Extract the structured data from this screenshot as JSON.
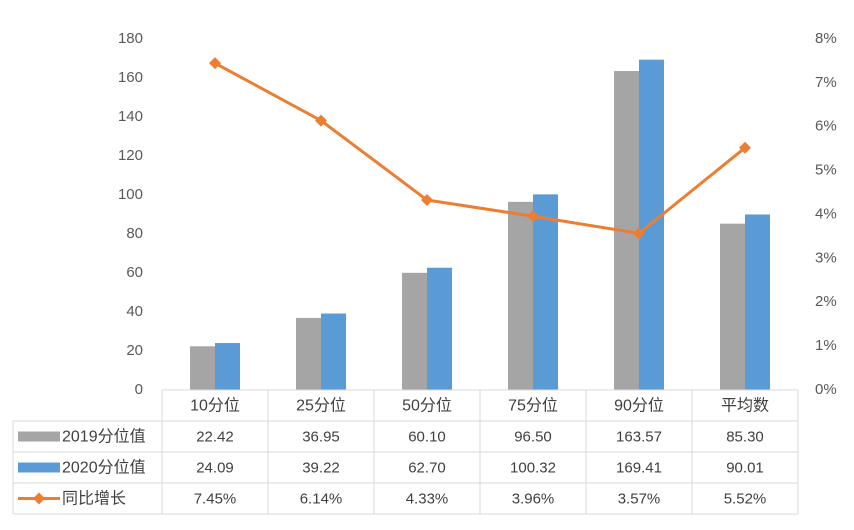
{
  "chart_data": {
    "type": "bar",
    "categories": [
      "10分位",
      "25分位",
      "50分位",
      "75分位",
      "90分位",
      "平均数"
    ],
    "series": [
      {
        "name": "2019分位值",
        "type": "bar",
        "axis": "left",
        "color": "#a5a5a5",
        "values": [
          22.42,
          36.95,
          60.1,
          96.5,
          163.57,
          85.3
        ],
        "labels": [
          "22.42",
          "36.95",
          "60.10",
          "96.50",
          "163.57",
          "85.30"
        ]
      },
      {
        "name": "2020分位值",
        "type": "bar",
        "axis": "left",
        "color": "#5b9bd5",
        "values": [
          24.09,
          39.22,
          62.7,
          100.32,
          169.41,
          90.01
        ],
        "labels": [
          "24.09",
          "39.22",
          "62.70",
          "100.32",
          "169.41",
          "90.01"
        ]
      },
      {
        "name": "同比增长",
        "type": "line",
        "axis": "right",
        "color": "#ed7d31",
        "values": [
          7.45,
          6.14,
          4.33,
          3.96,
          3.57,
          5.52
        ],
        "labels": [
          "7.45%",
          "6.14%",
          "4.33%",
          "3.96%",
          "3.57%",
          "5.52%"
        ]
      }
    ],
    "y_left": {
      "ylim": [
        0,
        180
      ],
      "ticks": [
        "0",
        "20",
        "40",
        "60",
        "80",
        "100",
        "120",
        "140",
        "160",
        "180"
      ]
    },
    "y_right": {
      "ylim": [
        0,
        8
      ],
      "ticks": [
        "0%",
        "1%",
        "2%",
        "3%",
        "4%",
        "5%",
        "6%",
        "7%",
        "8%"
      ]
    },
    "grid": false,
    "legend": "data-table"
  }
}
